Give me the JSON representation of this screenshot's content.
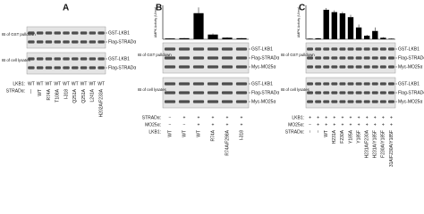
{
  "panels": [
    {
      "label": "A",
      "blot_groups": [
        {
          "title": "IB of GST pulldown",
          "bands": [
            "GST-LKB1",
            "Flag-STRADα"
          ]
        },
        {
          "title": "IB of cell lysates",
          "bands": [
            "GST-LKB1",
            "Flag-STRADα"
          ]
        }
      ],
      "rows": [
        {
          "name": "LKB1:",
          "lanes": [
            "WT",
            "WT",
            "WT",
            "WT",
            "WT",
            "WT",
            "WT",
            "WT",
            "WT"
          ]
        },
        {
          "name": "STRADα:",
          "lanes": [
            "—",
            "WT",
            "R74A",
            "T108A",
            "I-318",
            "Q251A",
            "Q251A",
            "L241A",
            "H202A/F233A"
          ]
        }
      ]
    },
    {
      "label": "B",
      "chart": {
        "ylabel": "AMPK Activity (U/mg)",
        "values": [
          3,
          4,
          100,
          18,
          6,
          4
        ],
        "errors": [
          1,
          1,
          22,
          4,
          2,
          1
        ],
        "ylim": [
          0,
          130
        ]
      },
      "blot_groups": [
        {
          "title": "IB of GST pulldown",
          "bands": [
            "GST-LKB1",
            "Flag-STRADα",
            "Myc-MO25α"
          ]
        },
        {
          "title": "IB of cell lysates",
          "bands": [
            "GST-LKB1",
            "Flag-STRADα",
            "Myc-MO25α"
          ]
        }
      ],
      "rows": [
        {
          "name": "STRADα:",
          "lanes": [
            "−",
            "+",
            "+",
            "+",
            "+",
            "+"
          ]
        },
        {
          "name": "MO25α:",
          "lanes": [
            "−",
            "−",
            "+",
            "+",
            "+",
            "+"
          ]
        },
        {
          "name": "LKB1:",
          "lanes": [
            "WT",
            "WT",
            "WT",
            "R74A",
            "R74A/F298A",
            "I-318"
          ]
        }
      ]
    },
    {
      "label": "C",
      "chart": {
        "ylabel": "AMPK Activity (U/mg)",
        "values": [
          2,
          3,
          100,
          92,
          88,
          75,
          40,
          12,
          28,
          5,
          2
        ],
        "errors": [
          1,
          1,
          6,
          6,
          5,
          8,
          10,
          3,
          12,
          2,
          1
        ],
        "ylim": [
          0,
          115
        ]
      },
      "blot_groups": [
        {
          "title": "IB of GST pulldown",
          "bands": [
            "GST-LKB1",
            "Flag-STRADα",
            "Myc-MO25α"
          ]
        },
        {
          "title": "IB of cell lysates",
          "bands": [
            "GST-LKB1",
            "Flag-STRADα",
            "Myc-MO25α"
          ]
        }
      ],
      "rows": [
        {
          "name": "LKB1:",
          "lanes": [
            "+",
            "+",
            "+",
            "+",
            "+",
            "+",
            "+",
            "+",
            "+",
            "+",
            "+"
          ]
        },
        {
          "name": "MO25α:",
          "lanes": [
            "−",
            "+",
            "+",
            "+",
            "+",
            "+",
            "+",
            "+",
            "+",
            "+",
            "+"
          ]
        },
        {
          "name": "STRADα:",
          "lanes": [
            "−",
            "−",
            "WT",
            "H231A",
            "F230A",
            "Y185A",
            "Y185F",
            "H231A/F230A",
            "H231A/Y185F",
            "F230A/Y185F",
            "H231A/F230A/Y185F"
          ]
        }
      ]
    }
  ]
}
